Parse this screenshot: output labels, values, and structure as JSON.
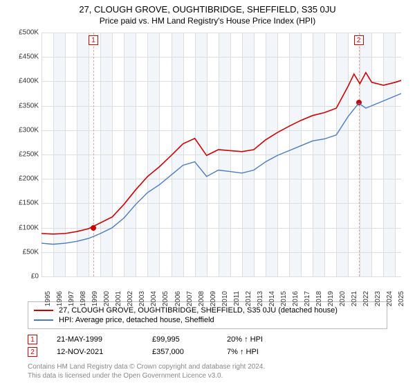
{
  "title": "27, CLOUGH GROVE, OUGHTIBRIDGE, SHEFFIELD, S35 0JU",
  "subtitle": "Price paid vs. HM Land Registry's House Price Index (HPI)",
  "chart": {
    "type": "line",
    "xlim": [
      1995,
      2025.5
    ],
    "ylim": [
      0,
      500000
    ],
    "ytick_step": 50000,
    "background_color": "#ffffff",
    "band_color": "#f2f6fb",
    "grid_color": "#dddddd",
    "series": [
      {
        "name": "price_paid",
        "label": "27, CLOUGH GROVE, OUGHTIBRIDGE, SHEFFIELD, S35 0JU (detached house)",
        "color": "#cc0000",
        "width": 1.6,
        "data": [
          [
            1995,
            88000
          ],
          [
            1996,
            87000
          ],
          [
            1997,
            88000
          ],
          [
            1998,
            92000
          ],
          [
            1999,
            98000
          ],
          [
            2000,
            110000
          ],
          [
            2001,
            122000
          ],
          [
            2002,
            148000
          ],
          [
            2003,
            178000
          ],
          [
            2004,
            205000
          ],
          [
            2005,
            225000
          ],
          [
            2006,
            248000
          ],
          [
            2007,
            272000
          ],
          [
            2008,
            283000
          ],
          [
            2009,
            248000
          ],
          [
            2010,
            260000
          ],
          [
            2011,
            258000
          ],
          [
            2012,
            256000
          ],
          [
            2013,
            260000
          ],
          [
            2014,
            280000
          ],
          [
            2015,
            295000
          ],
          [
            2016,
            308000
          ],
          [
            2017,
            320000
          ],
          [
            2018,
            330000
          ],
          [
            2019,
            336000
          ],
          [
            2020,
            345000
          ],
          [
            2021,
            390000
          ],
          [
            2021.5,
            415000
          ],
          [
            2022,
            395000
          ],
          [
            2022.5,
            418000
          ],
          [
            2023,
            398000
          ],
          [
            2024,
            392000
          ],
          [
            2025,
            398000
          ],
          [
            2025.5,
            402000
          ]
        ]
      },
      {
        "name": "hpi",
        "label": "HPI: Average price, detached house, Sheffield",
        "color": "#4a7bbf",
        "width": 1.4,
        "data": [
          [
            1995,
            68000
          ],
          [
            1996,
            66000
          ],
          [
            1997,
            68000
          ],
          [
            1998,
            72000
          ],
          [
            1999,
            78000
          ],
          [
            2000,
            88000
          ],
          [
            2001,
            100000
          ],
          [
            2002,
            120000
          ],
          [
            2003,
            148000
          ],
          [
            2004,
            172000
          ],
          [
            2005,
            188000
          ],
          [
            2006,
            208000
          ],
          [
            2007,
            228000
          ],
          [
            2008,
            235000
          ],
          [
            2009,
            205000
          ],
          [
            2010,
            218000
          ],
          [
            2011,
            215000
          ],
          [
            2012,
            212000
          ],
          [
            2013,
            218000
          ],
          [
            2014,
            235000
          ],
          [
            2015,
            248000
          ],
          [
            2016,
            258000
          ],
          [
            2017,
            268000
          ],
          [
            2018,
            278000
          ],
          [
            2019,
            282000
          ],
          [
            2020,
            290000
          ],
          [
            2021,
            328000
          ],
          [
            2021.9,
            355000
          ],
          [
            2022.5,
            345000
          ],
          [
            2023,
            350000
          ],
          [
            2024,
            360000
          ],
          [
            2025,
            370000
          ],
          [
            2025.5,
            375000
          ]
        ]
      }
    ],
    "transactions": [
      {
        "idx": "1",
        "date": "21-MAY-1999",
        "x": 1999.4,
        "price_label": "£99,995",
        "price": 99995,
        "pct": "20%",
        "dir": "↑",
        "vs": "HPI"
      },
      {
        "idx": "2",
        "date": "12-NOV-2021",
        "x": 2021.9,
        "price_label": "£357,000",
        "price": 357000,
        "pct": "7%",
        "dir": "↑",
        "vs": "HPI"
      }
    ],
    "dash_color": "#e9a0a0",
    "axis_fontsize": 10,
    "marker_border": "#cc0000"
  },
  "footer_line1": "Contains HM Land Registry data © Crown copyright and database right 2024.",
  "footer_line2": "This data is licensed under the Open Government Licence v3.0."
}
